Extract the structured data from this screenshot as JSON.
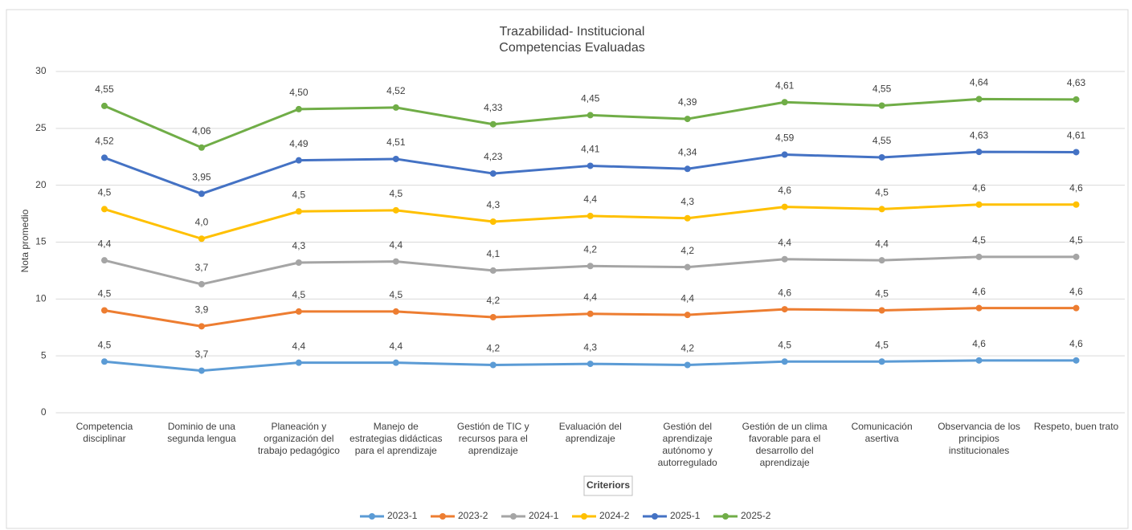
{
  "chart_data": {
    "type": "stacked-line",
    "title": "Trazabilidad- Institucional",
    "subtitle": "Competencias Evaluadas",
    "y_label": "Nota promedio",
    "x_label": "Criteriors",
    "categories": [
      "Competencia disciplinar",
      "Dominio de una segunda lengua",
      "Planeación y organización del trabajo pedagógico",
      "Manejo de estrategias didácticas para el aprendizaje",
      "Gestión de TIC y recursos para el aprendizaje",
      "Evaluación del aprendizaje",
      "Gestión del aprendizaje autónomo y autorregulado",
      "Gestión de un clima favorable para el desarrollo del aprendizaje",
      "Comunicación asertiva",
      "Observancia de los principios institucionales",
      "Respeto, buen trato"
    ],
    "ylim": [
      0,
      30
    ],
    "yticks": [
      0,
      5,
      10,
      15,
      20,
      25,
      30
    ],
    "grid": true,
    "legend": "bottom",
    "series": [
      {
        "name": "2023-1",
        "color": "#5b9bd5",
        "values": [
          4.5,
          3.7,
          4.4,
          4.4,
          4.2,
          4.3,
          4.2,
          4.5,
          4.5,
          4.6,
          4.6
        ],
        "value_labels": [
          "4,5",
          "3,7",
          "4,4",
          "4,4",
          "4,2",
          "4,3",
          "4,2",
          "4,5",
          "4,5",
          "4,6",
          "4,6"
        ]
      },
      {
        "name": "2023-2",
        "color": "#ed7d31",
        "values": [
          4.5,
          3.9,
          4.5,
          4.5,
          4.2,
          4.4,
          4.4,
          4.6,
          4.5,
          4.6,
          4.6
        ],
        "value_labels": [
          "4,5",
          "3,9",
          "4,5",
          "4,5",
          "4,2",
          "4,4",
          "4,4",
          "4,6",
          "4,5",
          "4,6",
          "4,6"
        ]
      },
      {
        "name": "2024-1",
        "color": "#a5a5a5",
        "values": [
          4.4,
          3.7,
          4.3,
          4.4,
          4.1,
          4.2,
          4.2,
          4.4,
          4.4,
          4.5,
          4.5
        ],
        "value_labels": [
          "4,4",
          "3,7",
          "4,3",
          "4,4",
          "4,1",
          "4,2",
          "4,2",
          "4,4",
          "4,4",
          "4,5",
          "4,5"
        ]
      },
      {
        "name": "2024-2",
        "color": "#ffc000",
        "values": [
          4.5,
          4,
          4.5,
          4.5,
          4.3,
          4.4,
          4.3,
          4.6,
          4.5,
          4.6,
          4.6
        ],
        "value_labels": [
          "4,5",
          "4,0",
          "4,5",
          "4,5",
          "4,3",
          "4,4",
          "4,3",
          "4,6",
          "4,5",
          "4,6",
          "4,6"
        ]
      },
      {
        "name": "2025-1",
        "color": "#4472c4",
        "values": [
          4.52,
          3.95,
          4.49,
          4.51,
          4.23,
          4.41,
          4.34,
          4.59,
          4.55,
          4.63,
          4.61
        ],
        "value_labels": [
          "4,52",
          "3,95",
          "4,49",
          "4,51",
          "4,23",
          "4,41",
          "4,34",
          "4,59",
          "4,55",
          "4,63",
          "4,61"
        ]
      },
      {
        "name": "2025-2",
        "color": "#70ad47",
        "values": [
          4.55,
          4.06,
          4.5,
          4.52,
          4.33,
          4.45,
          4.39,
          4.61,
          4.55,
          4.64,
          4.63
        ],
        "value_labels": [
          "4,55",
          "4,06",
          "4,50",
          "4,52",
          "4,33",
          "4,45",
          "4,39",
          "4,61",
          "4,55",
          "4,64",
          "4,63"
        ]
      }
    ]
  }
}
